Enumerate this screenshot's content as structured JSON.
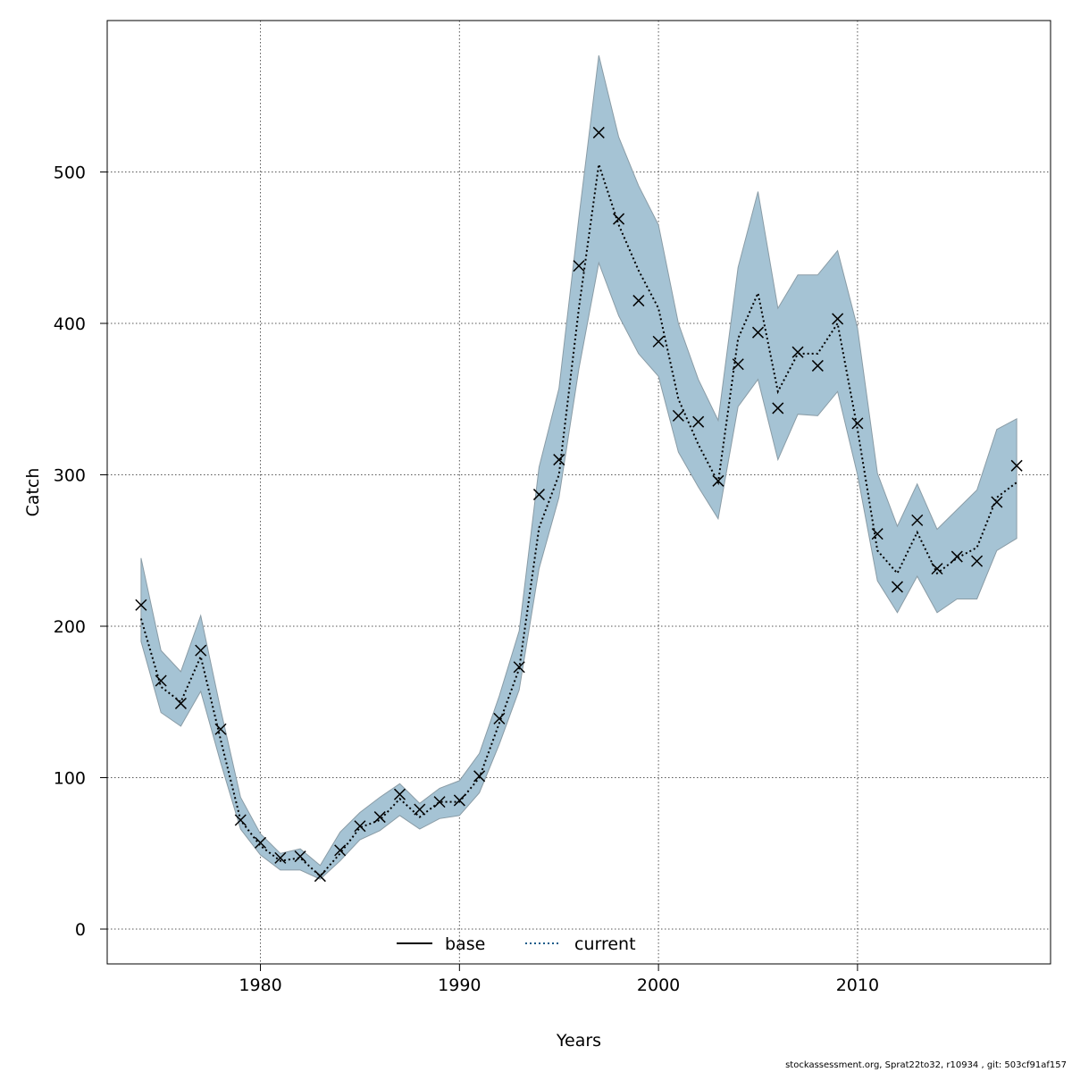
{
  "chart_data": {
    "type": "line",
    "xlabel": "Years",
    "ylabel": "Catch",
    "xlim": [
      1972.3,
      2019.7
    ],
    "ylim": [
      -23,
      600
    ],
    "x_ticks": [
      1980,
      1990,
      2000,
      2010
    ],
    "y_ticks": [
      0,
      100,
      200,
      300,
      400,
      500
    ],
    "grid": true,
    "band_color": "#a5c3d4",
    "band_edge_color": "#8a9ca6",
    "line_color": "#000000",
    "observed_marker": "x",
    "years": [
      1974,
      1975,
      1976,
      1977,
      1978,
      1979,
      1980,
      1981,
      1982,
      1983,
      1984,
      1985,
      1986,
      1987,
      1988,
      1989,
      1990,
      1991,
      1992,
      1993,
      1994,
      1995,
      1996,
      1997,
      1998,
      1999,
      2000,
      2001,
      2002,
      2003,
      2004,
      2005,
      2006,
      2007,
      2008,
      2009,
      2010,
      2011,
      2012,
      2013,
      2014,
      2015,
      2016,
      2017,
      2018
    ],
    "series": [
      {
        "name": "current",
        "style": "dotted",
        "values": [
          205,
          160,
          150,
          180,
          125,
          72,
          55,
          45,
          47,
          35,
          50,
          67,
          72,
          86,
          74,
          84,
          84,
          100,
          136,
          172,
          265,
          300,
          410,
          505,
          465,
          435,
          410,
          350,
          320,
          295,
          390,
          420,
          355,
          380,
          380,
          400,
          330,
          250,
          235,
          262,
          235,
          245,
          252,
          285,
          295
        ],
        "lower": [
          190,
          143,
          134,
          157,
          110,
          66,
          49,
          39,
          39,
          33,
          45,
          59,
          65,
          75,
          66,
          73,
          75,
          90,
          122,
          158,
          238,
          285,
          370,
          440,
          405,
          380,
          365,
          315,
          292,
          271,
          345,
          363,
          310,
          340,
          339,
          355,
          300,
          230,
          209,
          233,
          209,
          218,
          218,
          250,
          258
        ],
        "upper": [
          245,
          184,
          170,
          207,
          145,
          87,
          63,
          50,
          53,
          42,
          64,
          77,
          87,
          96,
          83,
          93,
          98,
          116,
          154,
          197,
          305,
          357,
          470,
          577,
          523,
          491,
          465,
          400,
          363,
          336,
          437,
          487,
          410,
          432,
          432,
          448,
          397,
          301,
          266,
          294,
          264,
          277,
          290,
          330,
          337
        ]
      },
      {
        "name": "base",
        "style": "solid",
        "values": []
      }
    ],
    "observed": [
      214,
      164,
      149,
      184,
      132,
      72,
      57,
      47,
      48,
      35,
      52,
      68,
      74,
      89,
      79,
      84,
      85,
      101,
      139,
      173,
      287,
      310,
      438,
      526,
      469,
      415,
      388,
      339,
      335,
      296,
      373,
      394,
      344,
      381,
      372,
      403,
      334,
      261,
      226,
      270,
      238,
      246,
      243,
      282,
      306
    ],
    "legend": {
      "position": "bottom-center",
      "items": [
        {
          "label": "base",
          "style": "solid"
        },
        {
          "label": "current",
          "style": "dotted",
          "color": "#1a5c8a"
        }
      ]
    }
  },
  "footer": "stockassessment.org, Sprat22to32, r10934 , git: 503cf91af157"
}
